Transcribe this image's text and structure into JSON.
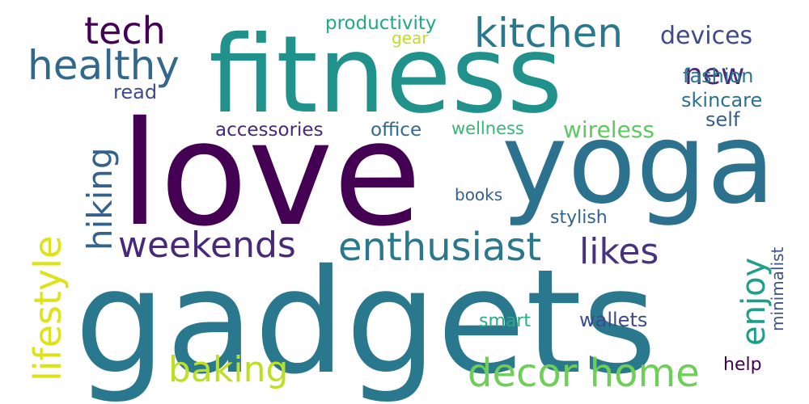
{
  "words": {
    "gadgets": {
      "text": "gadgets",
      "color": "#2a788e"
    },
    "love": {
      "text": "love",
      "color": "#440154"
    },
    "fitness": {
      "text": "fitness",
      "color": "#21918c"
    },
    "yoga": {
      "text": "yoga",
      "color": "#2c728e"
    },
    "kitchen": {
      "text": "kitchen",
      "color": "#2a788e"
    },
    "healthy": {
      "text": "healthy",
      "color": "#31688e"
    },
    "tech": {
      "text": "tech",
      "color": "#440154"
    },
    "devices": {
      "text": "devices",
      "color": "#3e4a89"
    },
    "new": {
      "text": "new",
      "color": "#482878"
    },
    "fashion": {
      "text": "fashion",
      "color": "#2a788e"
    },
    "productivity": {
      "text": "productivity",
      "color": "#22a884"
    },
    "gear": {
      "text": "gear",
      "color": "#bddf26"
    },
    "read": {
      "text": "read",
      "color": "#3e4a89"
    },
    "skincare": {
      "text": "skincare",
      "color": "#2c728e"
    },
    "accessories": {
      "text": "accessories",
      "color": "#482878"
    },
    "office": {
      "text": "office",
      "color": "#31688e"
    },
    "wellness": {
      "text": "wellness",
      "color": "#35b779"
    },
    "wireless": {
      "text": "wireless",
      "color": "#5ec962"
    },
    "self": {
      "text": "self",
      "color": "#355f8d"
    },
    "hiking": {
      "text": "hiking",
      "color": "#33638d"
    },
    "lifestyle": {
      "text": "lifestyle",
      "color": "#dde318"
    },
    "weekends": {
      "text": "weekends",
      "color": "#482878"
    },
    "enthusiast": {
      "text": "enthusiast",
      "color": "#2a788e"
    },
    "likes": {
      "text": "likes",
      "color": "#46327e"
    },
    "enjoy": {
      "text": "enjoy",
      "color": "#1f9e89"
    },
    "books": {
      "text": "books",
      "color": "#355f8d"
    },
    "stylish": {
      "text": "stylish",
      "color": "#33638d"
    },
    "minimalist": {
      "text": "minimalist",
      "color": "#3b528b"
    },
    "baking": {
      "text": "baking",
      "color": "#bddf26"
    },
    "decor_home": {
      "text": "decor home",
      "color": "#6ece58"
    },
    "smart": {
      "text": "smart",
      "color": "#26ad81"
    },
    "wallets": {
      "text": "wallets",
      "color": "#3e4a89"
    },
    "help": {
      "text": "help",
      "color": "#440154"
    }
  }
}
